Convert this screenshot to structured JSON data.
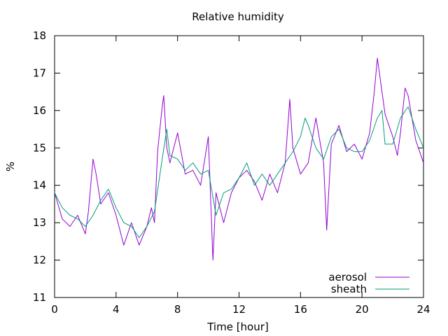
{
  "chart_data": {
    "type": "line",
    "title": "Relative humidity",
    "xlabel": "Time [hour]",
    "ylabel": "%",
    "xlim": [
      0,
      24
    ],
    "ylim": [
      11,
      18
    ],
    "xticks": [
      "0",
      "4",
      "8",
      "12",
      "16",
      "20",
      "24"
    ],
    "yticks": [
      "11",
      "12",
      "13",
      "14",
      "15",
      "16",
      "17",
      "18"
    ],
    "grid": false,
    "legend_position": "bottom-right",
    "series": [
      {
        "name": "aerosol",
        "color": "#9400d3",
        "x": [
          0,
          0.5,
          1,
          1.5,
          2,
          2.2,
          2.5,
          2.7,
          3,
          3.5,
          4,
          4.5,
          5,
          5.5,
          6,
          6.3,
          6.5,
          6.7,
          7,
          7.1,
          7.3,
          7.5,
          8,
          8.5,
          9,
          9.5,
          10,
          10.3,
          10.5,
          11,
          11.5,
          12,
          12.5,
          13,
          13.5,
          14,
          14.5,
          15,
          15.3,
          15.5,
          16,
          16.5,
          17,
          17.5,
          17.7,
          18,
          18.5,
          19,
          19.5,
          20,
          20.5,
          20.8,
          21,
          21.2,
          21.5,
          22,
          22.3,
          22.5,
          22.8,
          23,
          23.5,
          24
        ],
        "y": [
          13.8,
          13.1,
          12.9,
          13.2,
          12.7,
          13.3,
          14.7,
          14.3,
          13.5,
          13.8,
          13.2,
          12.4,
          13.0,
          12.4,
          12.9,
          13.4,
          13.0,
          14.9,
          16.1,
          16.4,
          15.0,
          14.6,
          15.4,
          14.3,
          14.4,
          14.0,
          15.3,
          12.0,
          13.8,
          13.0,
          13.8,
          14.2,
          14.4,
          14.1,
          13.6,
          14.3,
          13.8,
          14.6,
          16.3,
          15.0,
          14.3,
          14.6,
          15.8,
          14.6,
          12.8,
          15.1,
          15.6,
          14.9,
          15.1,
          14.7,
          15.4,
          16.5,
          17.4,
          16.8,
          15.9,
          15.3,
          14.8,
          15.4,
          16.6,
          16.4,
          15.2,
          14.6
        ]
      },
      {
        "name": "sheath",
        "color": "#009e73",
        "x": [
          0,
          0.5,
          1,
          1.5,
          2,
          2.5,
          3,
          3.5,
          4,
          4.5,
          5,
          5.5,
          6,
          6.5,
          7,
          7.3,
          7.5,
          8,
          8.5,
          9,
          9.5,
          10,
          10.5,
          11,
          11.5,
          12,
          12.5,
          13,
          13.5,
          14,
          14.5,
          15,
          15.5,
          16,
          16.3,
          16.5,
          17,
          17.5,
          18,
          18.5,
          19,
          19.5,
          20,
          20.5,
          21,
          21.3,
          21.5,
          22,
          22.5,
          23,
          23.5,
          24
        ],
        "y": [
          13.8,
          13.4,
          13.2,
          13.1,
          12.9,
          13.2,
          13.6,
          13.9,
          13.4,
          13.0,
          12.9,
          12.6,
          12.9,
          13.3,
          14.7,
          15.5,
          14.8,
          14.7,
          14.4,
          14.6,
          14.3,
          14.4,
          13.2,
          13.8,
          13.9,
          14.2,
          14.6,
          14.0,
          14.3,
          14.0,
          14.3,
          14.6,
          14.9,
          15.3,
          15.8,
          15.6,
          15.0,
          14.7,
          15.3,
          15.5,
          15.0,
          14.9,
          14.9,
          15.2,
          15.8,
          16.0,
          15.1,
          15.1,
          15.8,
          16.1,
          15.5,
          15.0
        ]
      }
    ]
  }
}
